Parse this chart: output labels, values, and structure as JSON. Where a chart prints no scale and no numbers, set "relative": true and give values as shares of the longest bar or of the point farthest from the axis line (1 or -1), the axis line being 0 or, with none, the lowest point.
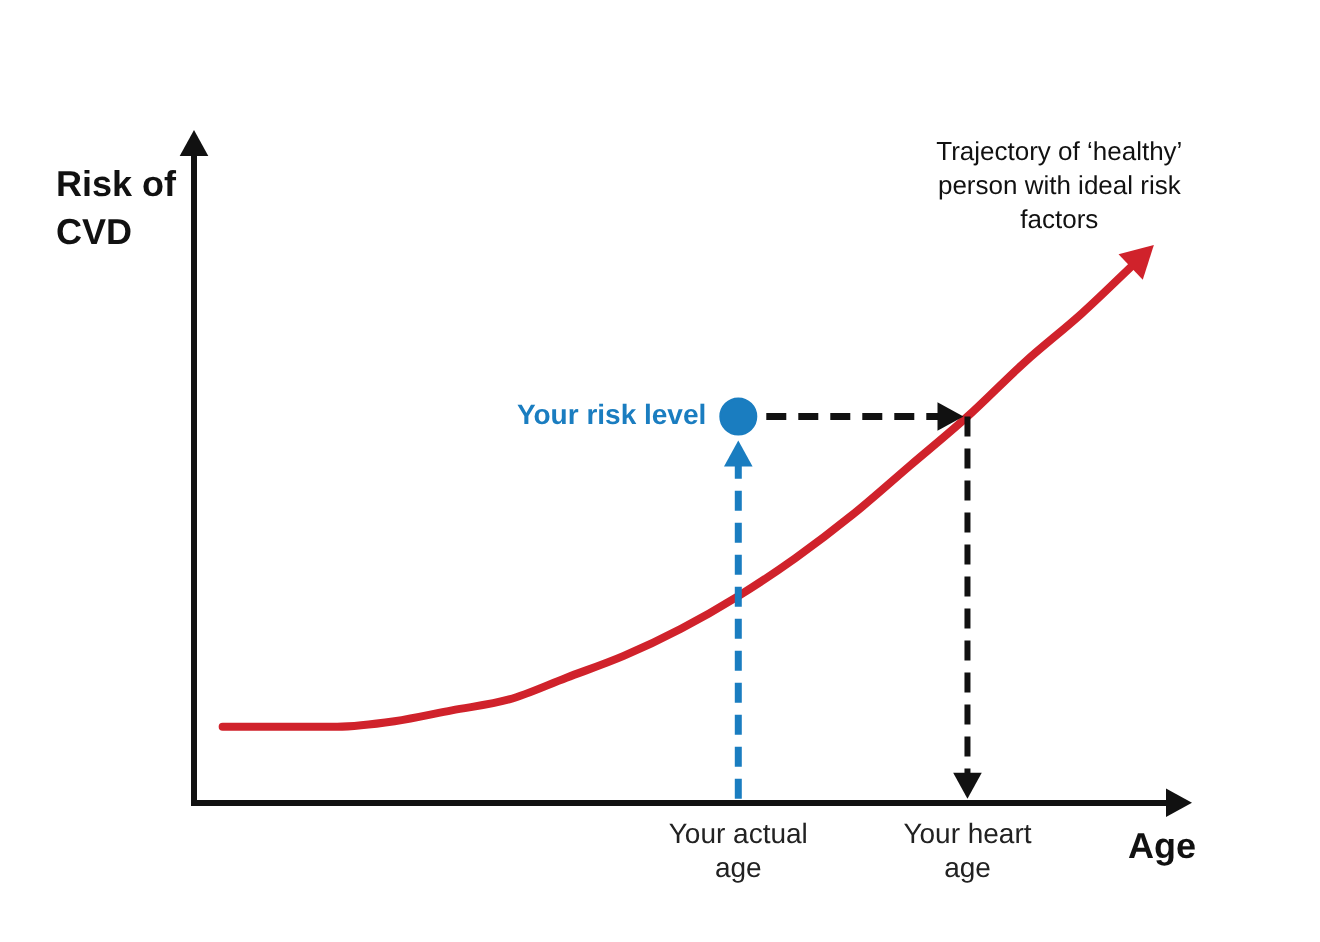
{
  "chart_data": {
    "type": "line",
    "xlabel": "Age",
    "ylabel": "Risk of CVD",
    "relative": true,
    "tick_labels": "x",
    "grid": false,
    "annotations": [
      "Trajectory of ‘healthy’ person with ideal risk factors"
    ],
    "categories": [
      null,
      null,
      null,
      null,
      null,
      null,
      null,
      null,
      null,
      "Your actual age",
      null,
      null,
      null,
      "Your heart age",
      null,
      null,
      null
    ],
    "series": [
      {
        "type": "line",
        "color": "#d0222b",
        "marker": "none",
        "values": [
          0.14,
          0.14,
          0.14,
          0.15,
          0.17,
          0.19,
          0.23,
          0.27,
          0.32,
          0.38,
          0.45,
          0.53,
          0.62,
          0.71,
          0.81,
          0.9,
          1
        ]
      },
      {
        "type": "scatter",
        "name": "Your risk level",
        "color": "#1a7dc0",
        "marker": "circle",
        "x": [
          "Your actual age"
        ],
        "values": [
          0.71
        ]
      }
    ]
  }
}
